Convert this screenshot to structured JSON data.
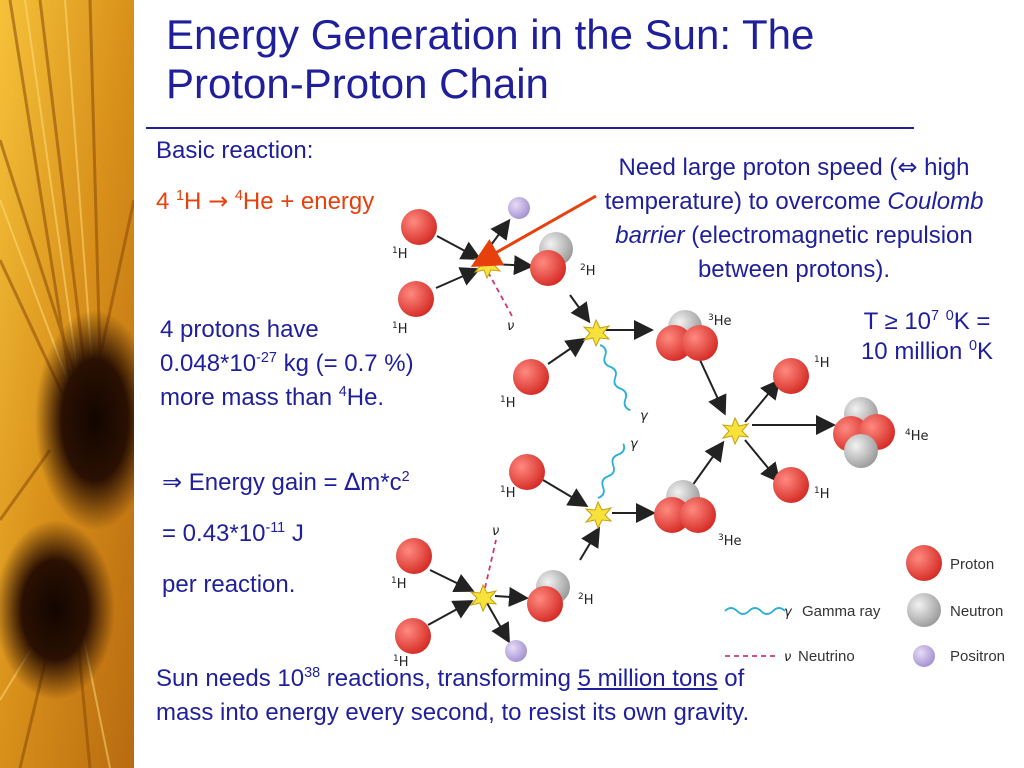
{
  "title": "Energy Generation in the Sun: The Proton-Proton Chain",
  "basic_reaction": {
    "label": "Basic reaction:",
    "equation": {
      "count": "4",
      "h_mass": "1",
      "h": "H",
      "arrow": "→",
      "he_mass": "4",
      "he_and_energy": "He + energy"
    }
  },
  "speed_note": {
    "line1_pre": "Need large proton speed (",
    "line1_symbol": "⇔",
    "line1_post": " high temperature) to overcome ",
    "italic": "Coulomb barrier",
    "line3": " (electromagnetic repulsion between protons)."
  },
  "temp_note": {
    "t": "T ≥ 10",
    "exp": "7",
    "deg": "0",
    "k1": "K =",
    "ten_million": "10 million ",
    "deg2": "0",
    "k2": "K"
  },
  "protons_note": {
    "line1": "4 protons have",
    "mass_pre": "0.048*10",
    "mass_exp": "-27",
    "mass_post": " kg (= 0.7 %)",
    "line3_pre": "more mass than ",
    "he_mass": "4",
    "he": "He."
  },
  "energy_gain": {
    "arrow": "⇒",
    "text_pre": " Energy gain = ",
    "delta": "∆",
    "text_mid": "m*c",
    "exp": "2"
  },
  "energy_value": {
    "pre": "= 0.43*10",
    "exp": "-11",
    "post": " J"
  },
  "per_reaction": "per reaction.",
  "sun_needs": {
    "pre": "Sun needs 10",
    "exp": "38",
    "mid": " reactions, transforming ",
    "underline": "5 million tons",
    "post": " of mass into energy every second, to resist its own gravity."
  },
  "diagram": {
    "labels": {
      "h1": "H",
      "h1_mass": "1",
      "h2": "H",
      "h2_mass": "2",
      "he3": "He",
      "he3_mass": "3",
      "he4": "He",
      "he4_mass": "4",
      "nu": "ν",
      "gamma": "γ"
    },
    "legend": {
      "gamma_ray": "Gamma ray",
      "neutrino": "Neutrino",
      "proton": "Proton",
      "neutron": "Neutron",
      "positron": "Positron"
    }
  },
  "colors": {
    "title": "#1f1f9c",
    "reaction": "#e8400c",
    "proton": "#e03a34",
    "neutron": "#b4b4b4",
    "positron": "#b9a8dd",
    "photon": "#2ab0d8",
    "neutrino": "#d0357a"
  }
}
